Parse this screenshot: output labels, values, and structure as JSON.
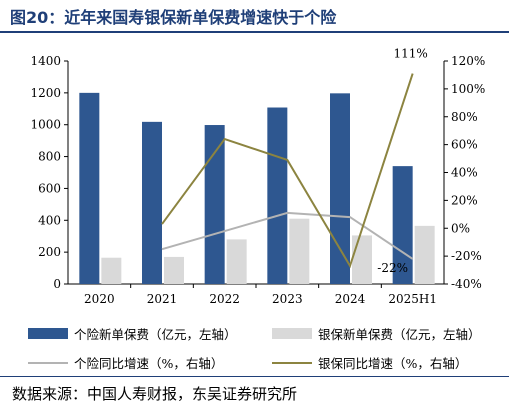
{
  "title": "图20：近年来国寿银保新单保费增速快于个险",
  "source": "数据来源：中国人寿财报，东吴证券研究所",
  "chart_data": {
    "type": "bar",
    "categories": [
      "2020",
      "2021",
      "2022",
      "2023",
      "2024",
      "2025H1"
    ],
    "y_left": {
      "min": 0,
      "max": 1400,
      "step": 200,
      "tick_labels": [
        "0",
        "200",
        "400",
        "600",
        "800",
        "1000",
        "1200",
        "1400"
      ]
    },
    "y_right": {
      "min": -40,
      "max": 120,
      "step": 20,
      "tick_labels": [
        "-40%",
        "-20%",
        "0%",
        "20%",
        "40%",
        "60%",
        "80%",
        "100%",
        "120%"
      ]
    },
    "series": [
      {
        "name": "个险新单保费（亿元，左轴）",
        "type": "bar",
        "axis": "left",
        "color": "#2e5790",
        "values": [
          1200,
          1018,
          998,
          1108,
          1197,
          740
        ]
      },
      {
        "name": "银保新单保费（亿元，左轴）",
        "type": "bar",
        "axis": "left",
        "color": "#d9d9d9",
        "values": [
          165,
          170,
          280,
          410,
          305,
          365
        ]
      },
      {
        "name": "个险同比增速（%，右轴）",
        "type": "line",
        "axis": "right",
        "color": "#b3b3b3",
        "values": [
          null,
          -15,
          -2,
          11,
          8,
          -22
        ]
      },
      {
        "name": "银保同比增速（%，右轴）",
        "type": "line",
        "axis": "right",
        "color": "#8c8440",
        "values": [
          null,
          3,
          64,
          49,
          -27,
          111
        ]
      }
    ],
    "annotations": [
      {
        "series": "银保同比增速（%，右轴）",
        "category": "2025H1",
        "text": "111%"
      },
      {
        "series": "个险同比增速（%，右轴）",
        "category": "2025H1",
        "text": "-22%"
      }
    ],
    "legend_position": "bottom",
    "grid": false
  }
}
